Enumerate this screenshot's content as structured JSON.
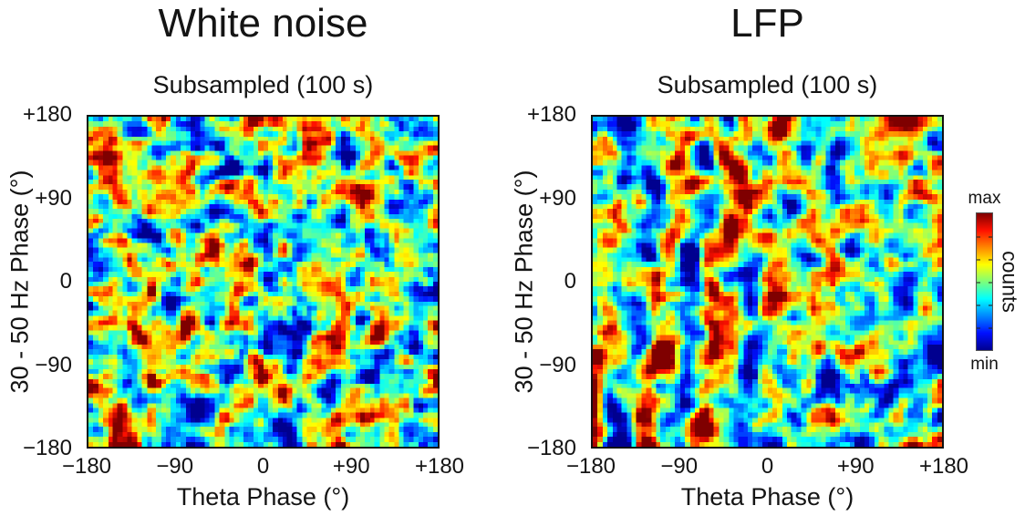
{
  "figure": {
    "background": "#ffffff",
    "text_color": "#141414",
    "axis_border_color": "#111111"
  },
  "colorbar": {
    "top_label": "max",
    "bottom_label": "min",
    "axis_label": "counts",
    "tick_count": 5,
    "jet_stops": [
      [
        0.0,
        "#00008f"
      ],
      [
        0.125,
        "#0010ff"
      ],
      [
        0.375,
        "#00ffff"
      ],
      [
        0.5,
        "#7dff7a"
      ],
      [
        0.625,
        "#ffff00"
      ],
      [
        0.875,
        "#ff1000"
      ],
      [
        1.0,
        "#7f0000"
      ]
    ]
  },
  "chart_data": [
    {
      "type": "heatmap",
      "title": "White noise",
      "subtitle": "Subsampled (100 s)",
      "xlabel": "Theta Phase (°)",
      "ylabel": "30 - 50 Hz Phase (°)",
      "x_range": [
        -180,
        180
      ],
      "y_range": [
        -180,
        180
      ],
      "x_ticks": [
        "−180",
        "−90",
        "0",
        "+90",
        "+180"
      ],
      "x_tick_values": [
        -180,
        -90,
        0,
        90,
        180
      ],
      "y_ticks": [
        "+180",
        "+90",
        "0",
        "−90",
        "−180"
      ],
      "y_tick_values": [
        180,
        90,
        0,
        -90,
        -180
      ],
      "colormap": "jet",
      "value_scale": {
        "min_label": "min",
        "max_label": "max",
        "units": "counts"
      },
      "grid": [
        72,
        68
      ],
      "description": "Phase-phase coupling count histogram for white noise, 100 s subsample: isotropic random blobs with no systematic phase-phase structure; mid-count teal/green background with scattered high-count (red/yellow) and low-count (dark blue) patches.",
      "render": {
        "seed": 421733,
        "coarse": {
          "x": 4,
          "y": 4
        },
        "fine_mix": 0.55,
        "streak_amp": 0.28,
        "contrast_k": 2.1,
        "stripe": {
          "enabled": false,
          "center": 0,
          "period": 60,
          "tilt": 0,
          "wobble_amp": 0,
          "wobble_period": 150,
          "wobble_phase": 0,
          "amp_left": 0,
          "amp_right": 0,
          "fade_start": 0,
          "fade_end": 1
        }
      }
    },
    {
      "type": "heatmap",
      "title": "LFP",
      "subtitle": "Subsampled (100 s)",
      "xlabel": "Theta Phase (°)",
      "ylabel": "30 - 50 Hz Phase (°)",
      "x_range": [
        -180,
        180
      ],
      "y_range": [
        -180,
        180
      ],
      "x_ticks": [
        "−180",
        "−90",
        "0",
        "+90",
        "+180"
      ],
      "x_tick_values": [
        -180,
        -90,
        0,
        90,
        180
      ],
      "y_ticks": [
        "+180",
        "+90",
        "0",
        "−90",
        "−180"
      ],
      "y_tick_values": [
        180,
        90,
        0,
        -90,
        -180
      ],
      "colormap": "jet",
      "value_scale": {
        "min_label": "min",
        "max_label": "max",
        "units": "counts"
      },
      "grid": [
        72,
        68
      ],
      "description": "Phase-phase coupling count histogram for hippocampal LFP, 100 s subsample: apparent n:m phase-locking pattern with wavy vertical low-count (dark blue) bands near theta phases −140° and −80° alternating with high-count (red) blob columns; structure strongest for negative theta phases.",
      "render": {
        "seed": 911035,
        "coarse": {
          "x": 4,
          "y": 6
        },
        "fine_mix": 0.45,
        "streak_amp": 0.24,
        "contrast_k": 1.9,
        "stripe": {
          "enabled": true,
          "center": -135,
          "period": 60,
          "tilt": 0.11,
          "wobble_amp": 9,
          "wobble_period": 150,
          "wobble_phase": 0.8,
          "amp_left": 1.0,
          "amp_right": 0.25,
          "fade_start": -30,
          "fade_end": 50
        }
      }
    }
  ]
}
